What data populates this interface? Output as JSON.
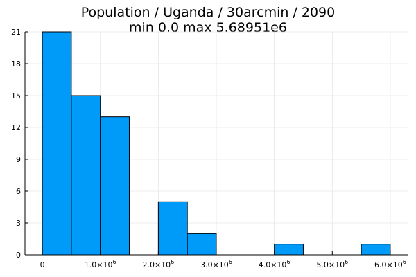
{
  "chart_data": {
    "type": "bar",
    "title": "Population / Uganda / 30arcmin / 2090",
    "subtitle": "min 0.0  max 5.68951e6",
    "xlabel": "",
    "ylabel": "",
    "bin_width": 500000,
    "bins": [
      {
        "x0": 0,
        "x1": 500000,
        "count": 21
      },
      {
        "x0": 500000,
        "x1": 1000000,
        "count": 15
      },
      {
        "x0": 1000000,
        "x1": 1500000,
        "count": 13
      },
      {
        "x0": 1500000,
        "x1": 2000000,
        "count": 0
      },
      {
        "x0": 2000000,
        "x1": 2500000,
        "count": 5
      },
      {
        "x0": 2500000,
        "x1": 3000000,
        "count": 2
      },
      {
        "x0": 3000000,
        "x1": 3500000,
        "count": 0
      },
      {
        "x0": 3500000,
        "x1": 4000000,
        "count": 0
      },
      {
        "x0": 4000000,
        "x1": 4500000,
        "count": 1
      },
      {
        "x0": 4500000,
        "x1": 5000000,
        "count": 0
      },
      {
        "x0": 5000000,
        "x1": 5500000,
        "count": 0
      },
      {
        "x0": 5500000,
        "x1": 6000000,
        "count": 1
      }
    ],
    "xlim": [
      -300000,
      6300000
    ],
    "ylim": [
      0,
      21
    ],
    "xticks": [
      {
        "value": 0,
        "mantissa": "0",
        "exponent": ""
      },
      {
        "value": 1000000,
        "mantissa": "1.0×10",
        "exponent": "6"
      },
      {
        "value": 2000000,
        "mantissa": "2.0×10",
        "exponent": "6"
      },
      {
        "value": 3000000,
        "mantissa": "3.0×10",
        "exponent": "6"
      },
      {
        "value": 4000000,
        "mantissa": "4.0×10",
        "exponent": "6"
      },
      {
        "value": 5000000,
        "mantissa": "5.0×10",
        "exponent": "6"
      },
      {
        "value": 6000000,
        "mantissa": "6.0×10",
        "exponent": "6"
      }
    ],
    "yticks": [
      0,
      3,
      6,
      9,
      12,
      15,
      18,
      21
    ],
    "grid": true,
    "legend": "none",
    "bar_color": "#009AF9",
    "bar_edge_color": "#000000"
  }
}
